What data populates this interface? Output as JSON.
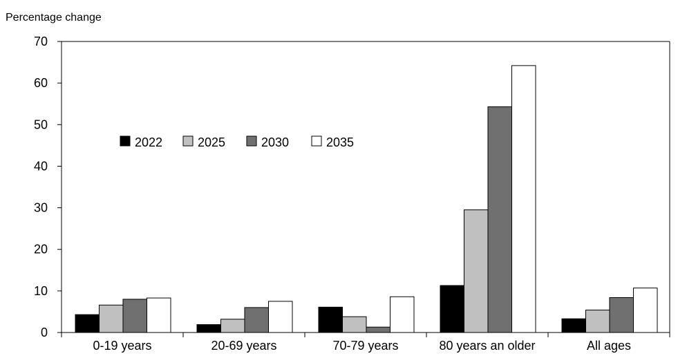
{
  "chart_data": {
    "type": "bar",
    "title": "",
    "xlabel": "",
    "ylabel": "Percentage change",
    "ylim": [
      0,
      70
    ],
    "yticks": [
      0,
      10,
      20,
      30,
      40,
      50,
      60,
      70
    ],
    "grid": false,
    "legend_position": "upper-left",
    "categories": [
      "0-19 years",
      "20-69 years",
      "70-79 years",
      "80 years an older",
      "All ages"
    ],
    "series": [
      {
        "name": "2022",
        "color": "#000000",
        "values": [
          4.3,
          1.9,
          6.1,
          11.3,
          3.3
        ]
      },
      {
        "name": "2025",
        "color": "#c0c0c0",
        "values": [
          6.6,
          3.2,
          3.8,
          29.5,
          5.4
        ]
      },
      {
        "name": "2030",
        "color": "#707070",
        "values": [
          8.0,
          6.0,
          1.3,
          54.3,
          8.4
        ]
      },
      {
        "name": "2035",
        "color": "#ffffff",
        "values": [
          8.3,
          7.5,
          8.6,
          64.2,
          10.7
        ]
      }
    ]
  }
}
